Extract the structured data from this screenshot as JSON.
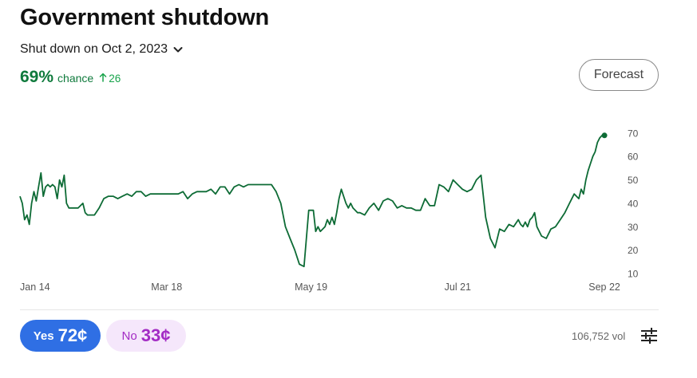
{
  "market": {
    "title": "Government shutdown",
    "subtitle": "Shut down on Oct 2, 2023",
    "chance_pct": "69%",
    "chance_label": "chance",
    "change": "26",
    "forecast_label": "Forecast"
  },
  "trade": {
    "yes_label": "Yes",
    "yes_price": "72¢",
    "no_label": "No",
    "no_price": "33¢",
    "volume": "106,752 vol"
  },
  "icons": {
    "chevron": "chevron-down-icon",
    "up_arrow": "arrow-up-icon",
    "settings": "sliders-icon"
  },
  "colors": {
    "line": "#0d6b35",
    "chance": "#0f7a3c",
    "yes": "#2f6fe4",
    "no_bg": "#f5e7fb",
    "no_text": "#a32cc4"
  },
  "chart_data": {
    "type": "line",
    "title": "",
    "xlabel": "",
    "ylabel": "",
    "x_tick_labels": [
      "Jan 14",
      "Mar 18",
      "May 19",
      "Jul 21",
      "Sep 22"
    ],
    "x_tick_days": [
      0,
      63,
      125,
      188,
      251
    ],
    "yticks": [
      10,
      20,
      30,
      40,
      50,
      60,
      70
    ],
    "ylim": [
      10,
      72
    ],
    "xlim": [
      0,
      252
    ],
    "grid": false,
    "legend": "none",
    "series": [
      {
        "x": [
          0,
          1,
          2,
          3,
          4,
          5,
          6,
          7,
          8,
          9,
          10,
          11,
          12,
          13,
          14,
          15,
          16,
          17,
          18,
          19,
          20,
          21,
          22,
          23,
          24,
          25,
          26,
          27,
          28,
          29,
          30,
          32,
          34,
          36,
          38,
          40,
          42,
          44,
          46,
          48,
          50,
          52,
          54,
          56,
          58,
          60,
          62,
          64,
          66,
          68,
          70,
          72,
          74,
          76,
          78,
          80,
          82,
          84,
          86,
          88,
          90,
          92,
          94,
          96,
          98,
          100,
          102,
          104,
          106,
          108,
          110,
          112,
          114,
          116,
          118,
          120,
          122,
          124,
          126,
          127,
          128,
          129,
          130,
          131,
          132,
          133,
          134,
          135,
          136,
          137,
          138,
          139,
          140,
          141,
          142,
          143,
          144,
          145,
          146,
          148,
          150,
          152,
          154,
          156,
          158,
          160,
          162,
          164,
          166,
          168,
          170,
          172,
          174,
          176,
          178,
          180,
          182,
          184,
          186,
          188,
          190,
          192,
          194,
          196,
          198,
          200,
          202,
          204,
          206,
          208,
          210,
          212,
          214,
          215,
          216,
          217,
          218,
          219,
          220,
          221,
          222,
          224,
          226,
          228,
          230,
          232,
          234,
          236,
          238,
          240,
          241,
          242,
          243,
          244,
          245,
          246,
          247,
          248,
          249,
          250,
          251
        ],
        "y": [
          43,
          40,
          33,
          35,
          31,
          40,
          45,
          41,
          47,
          53,
          43,
          47,
          48,
          47,
          48,
          47,
          42,
          50,
          47,
          52,
          40,
          38,
          38,
          38,
          38,
          38,
          39,
          40,
          36,
          35,
          35,
          35,
          38,
          42,
          43,
          43,
          42,
          43,
          44,
          43,
          45,
          45,
          43,
          44,
          44,
          44,
          44,
          44,
          44,
          44,
          45,
          42,
          44,
          45,
          45,
          45,
          46,
          44,
          47,
          47,
          44,
          47,
          48,
          47,
          48,
          48,
          48,
          48,
          48,
          48,
          45,
          40,
          30,
          25,
          20,
          14,
          13,
          37,
          37,
          28,
          30,
          28,
          29,
          30,
          33,
          31,
          34,
          31,
          36,
          42,
          46,
          43,
          40,
          38,
          40,
          38,
          37,
          36,
          36,
          35,
          38,
          40,
          37,
          41,
          42,
          41,
          38,
          39,
          38,
          38,
          37,
          37,
          42,
          39,
          39,
          48,
          47,
          45,
          50,
          48,
          46,
          45,
          46,
          50,
          52,
          34,
          25,
          21,
          29,
          28,
          31,
          30,
          33,
          31,
          30,
          32,
          30,
          33,
          34,
          36,
          30,
          26,
          25,
          29,
          30,
          33,
          36,
          40,
          44,
          42,
          46,
          44,
          50,
          54,
          57,
          60,
          62,
          66,
          68,
          69,
          69
        ]
      }
    ]
  }
}
